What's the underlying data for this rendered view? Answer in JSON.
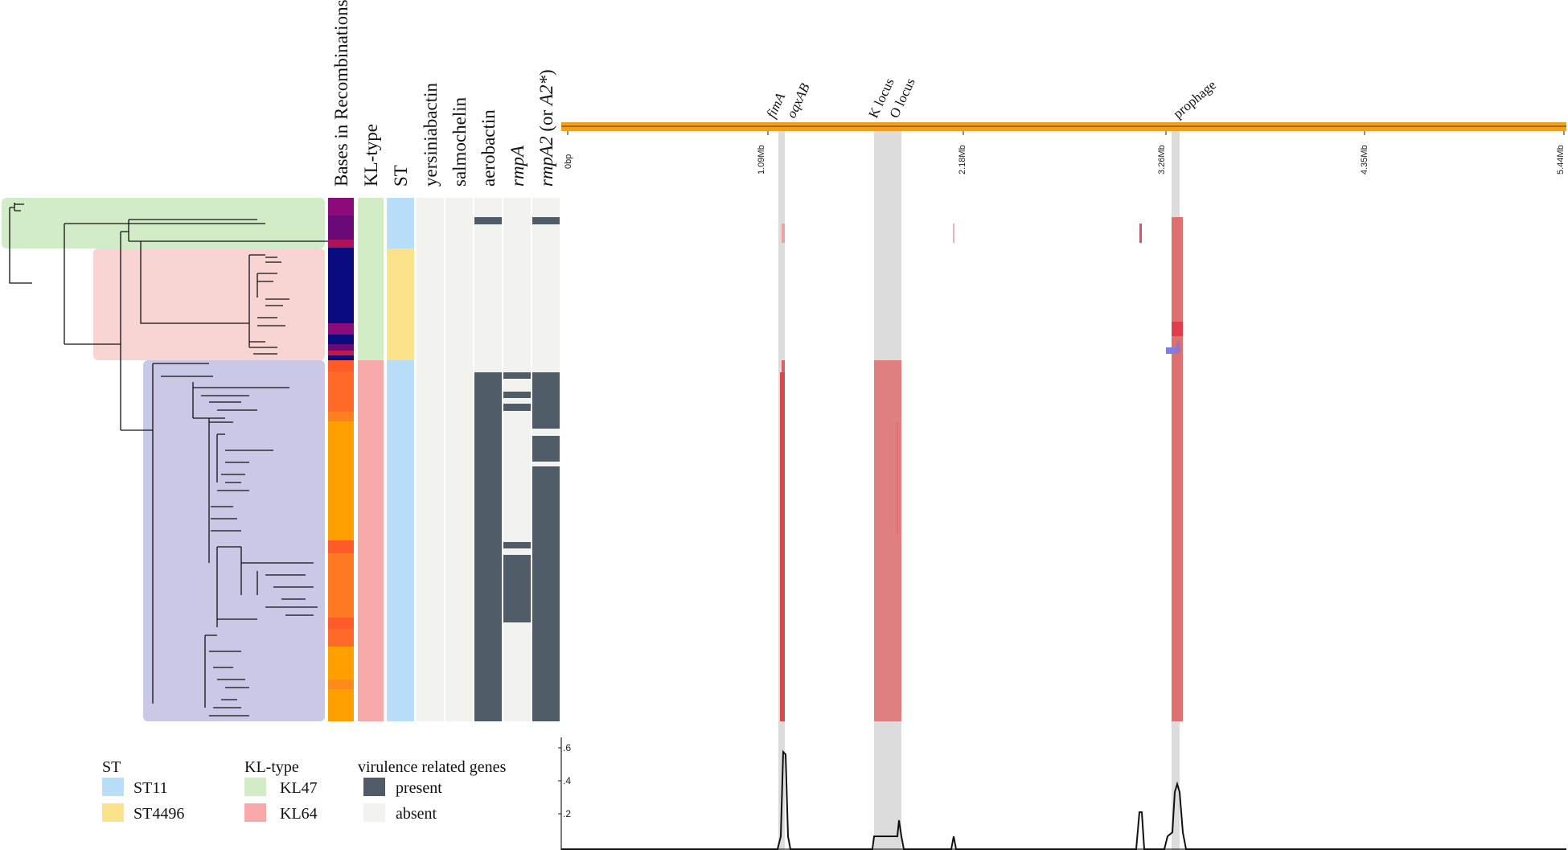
{
  "colors": {
    "kl47": "#d2ecc6",
    "kl64": "#f7a8a8",
    "st11": "#b9defa",
    "st4496": "#fde28c",
    "present": "#4f5b66",
    "absent": "#f2f2ee",
    "clade_green": "#d3ecc8",
    "clade_pink": "#f8d5d2",
    "clade_purple": "#c9c8e6",
    "genome_bar": "#f0a020",
    "highlight_gray": "#dcdcdc",
    "recomb_red": "#e07070",
    "recomb_blue": "#7f7fe0",
    "recomb_dark": "#0b0b7e",
    "recomb_purple": "#7a0a70",
    "recomb_orange": "#ffa000",
    "recomb_orange2": "#ff6a28"
  },
  "columns": {
    "bases": "Bases in Recombinations",
    "kl_type": "KL-type",
    "st": "ST",
    "yersiniabactin": "yersiniabactin",
    "salmochelin": "salmochelin",
    "aerobactin": "aerobactin",
    "rmpA": "rmpA",
    "rmpA2": "rmpA2",
    "rmpA2_suffix": " (or ",
    "rmpA2_italic2": "A2*",
    "rmpA2_close": ")"
  },
  "genome": {
    "ticks": [
      "0bp",
      "1.09Mb",
      "2.18Mb",
      "3.26Mb",
      "4.35Mb",
      "5.44Mb"
    ],
    "annotations": [
      "fimA",
      "oqxAB",
      "K locus",
      "O locus",
      "prophage"
    ]
  },
  "plot": {
    "yticks": [
      ".6",
      ".4",
      ".2"
    ]
  },
  "legend": {
    "st_title": "ST",
    "st_items": [
      "ST11",
      "ST4496"
    ],
    "kl_title": "KL-type",
    "kl_items": [
      "KL47",
      "KL64"
    ],
    "genes_title": "virulence related genes",
    "genes_items": [
      "present",
      "absent"
    ]
  }
}
